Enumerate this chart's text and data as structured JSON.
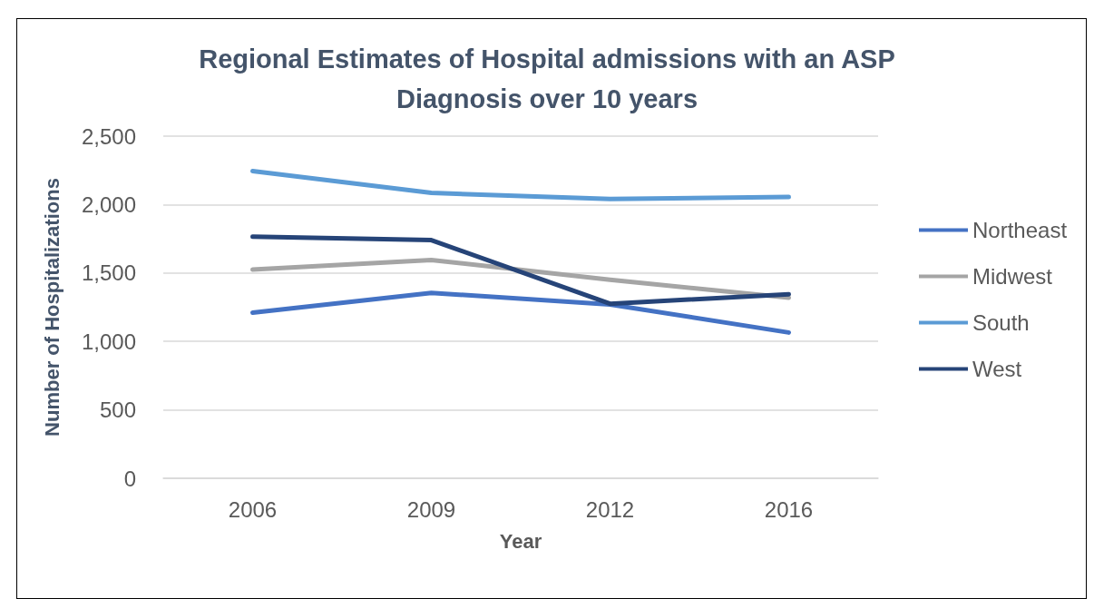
{
  "chart_data": {
    "type": "line",
    "title": "Regional Estimates of Hospital admissions with an ASP\nDiagnosis over 10 years",
    "xlabel": "Year",
    "ylabel": "Number of Hospitalizations",
    "categories": [
      "2006",
      "2009",
      "2012",
      "2016"
    ],
    "series": [
      {
        "name": "Northeast",
        "color": "#4472c4",
        "values": [
          1210,
          1355,
          1270,
          1065
        ]
      },
      {
        "name": "Midwest",
        "color": "#a5a5a5",
        "values": [
          1525,
          1595,
          1450,
          1320
        ]
      },
      {
        "name": "South",
        "color": "#5b9bd5",
        "values": [
          2245,
          2085,
          2040,
          2055
        ]
      },
      {
        "name": "West",
        "color": "#264478",
        "values": [
          1765,
          1740,
          1275,
          1345
        ]
      }
    ],
    "ylim": [
      0,
      2500
    ],
    "yticks": [
      0,
      500,
      {
        "value": 1000,
        "label": "1,000"
      },
      {
        "value": 1500,
        "label": "1,500"
      },
      {
        "value": 2000,
        "label": "2,000"
      },
      {
        "value": 2500,
        "label": "2,500"
      }
    ],
    "grid": "y",
    "legend": "right",
    "marker": "none",
    "line_style": "solid"
  }
}
